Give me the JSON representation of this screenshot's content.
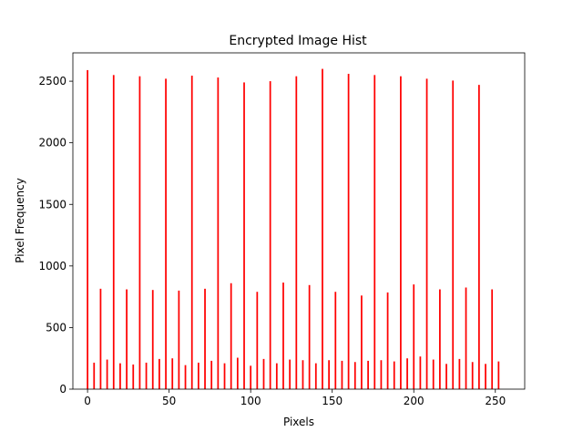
{
  "chart_data": {
    "type": "bar",
    "title": "Encrypted Image Hist",
    "xlabel": "Pixels",
    "ylabel": "Pixel Frequency",
    "xlim": [
      -9,
      268
    ],
    "ylim": [
      0,
      2730
    ],
    "xticks": [
      0,
      50,
      100,
      150,
      200,
      250
    ],
    "yticks": [
      0,
      500,
      1000,
      1500,
      2000,
      2500
    ],
    "grid": false,
    "legend": false,
    "bar_color": "#ff0000",
    "series": [
      {
        "x": [
          0,
          1,
          2,
          3,
          4,
          5,
          6,
          7,
          8,
          9,
          10,
          11,
          12,
          13,
          14,
          15,
          16,
          17,
          18,
          19,
          20,
          21,
          22,
          23,
          24,
          25,
          26,
          27,
          28,
          29,
          30,
          31,
          32,
          33,
          34,
          35,
          36,
          37,
          38,
          39,
          40,
          41,
          42,
          43,
          44,
          45,
          46,
          47,
          48,
          49,
          50,
          51,
          52,
          53,
          54,
          55,
          56,
          57,
          58,
          59,
          60,
          61,
          62,
          63,
          64,
          65,
          66,
          67,
          68,
          69,
          70,
          71,
          72,
          73,
          74,
          75,
          76,
          77,
          78,
          79,
          80,
          81,
          82,
          83,
          84,
          85,
          86,
          87,
          88,
          89,
          90,
          91,
          92,
          93,
          94,
          95,
          96,
          97,
          98,
          99,
          100,
          101,
          102,
          103,
          104,
          105,
          106,
          107,
          108,
          109,
          110,
          111,
          112,
          113,
          114,
          115,
          116,
          117,
          118,
          119,
          120,
          121,
          122,
          123,
          124,
          125,
          126,
          127,
          128,
          129,
          130,
          131,
          132,
          133,
          134,
          135,
          136,
          137,
          138,
          139,
          140,
          141,
          142,
          143,
          144,
          145,
          146,
          147,
          148,
          149,
          150,
          151,
          152,
          153,
          154,
          155,
          156,
          157,
          158,
          159,
          160,
          161,
          162,
          163,
          164,
          165,
          166,
          167,
          168,
          169,
          170,
          171,
          172,
          173,
          174,
          175,
          176,
          177,
          178,
          179,
          180,
          181,
          182,
          183,
          184,
          185,
          186,
          187,
          188,
          189,
          190,
          191,
          192,
          193,
          194,
          195,
          196,
          197,
          198,
          199,
          200,
          201,
          202,
          203,
          204,
          205,
          206,
          207,
          208,
          209,
          210,
          211,
          212,
          213,
          214,
          215,
          216,
          217,
          218,
          219,
          220,
          221,
          222,
          223,
          224,
          225,
          226,
          227,
          228,
          229,
          230,
          231,
          232,
          233,
          234,
          235,
          236,
          237,
          238,
          239,
          240,
          241,
          242,
          243,
          244,
          245,
          246,
          247,
          248,
          249,
          250,
          251,
          252,
          253,
          254,
          255
        ],
        "values": [
          2590,
          0,
          0,
          0,
          215,
          0,
          0,
          0,
          815,
          0,
          0,
          0,
          240,
          0,
          0,
          0,
          2550,
          0,
          0,
          0,
          210,
          0,
          0,
          0,
          810,
          0,
          0,
          0,
          200,
          0,
          0,
          0,
          2540,
          0,
          0,
          0,
          215,
          0,
          0,
          0,
          805,
          0,
          0,
          0,
          245,
          0,
          0,
          0,
          2520,
          0,
          0,
          0,
          250,
          0,
          0,
          0,
          800,
          0,
          0,
          0,
          195,
          0,
          0,
          0,
          2545,
          0,
          0,
          0,
          215,
          0,
          0,
          0,
          815,
          0,
          0,
          0,
          230,
          0,
          0,
          0,
          2530,
          0,
          0,
          0,
          210,
          0,
          0,
          0,
          860,
          0,
          0,
          0,
          255,
          0,
          0,
          0,
          2490,
          0,
          0,
          0,
          190,
          0,
          0,
          0,
          790,
          0,
          0,
          0,
          245,
          0,
          0,
          0,
          2500,
          0,
          0,
          0,
          210,
          0,
          0,
          0,
          865,
          0,
          0,
          0,
          240,
          0,
          0,
          0,
          2540,
          0,
          0,
          0,
          235,
          0,
          0,
          0,
          845,
          0,
          0,
          0,
          210,
          0,
          0,
          0,
          2600,
          0,
          0,
          0,
          235,
          0,
          0,
          0,
          790,
          0,
          0,
          0,
          230,
          0,
          0,
          0,
          2560,
          0,
          0,
          0,
          220,
          0,
          0,
          0,
          760,
          0,
          0,
          0,
          230,
          0,
          0,
          0,
          2550,
          0,
          0,
          0,
          235,
          0,
          0,
          0,
          785,
          0,
          0,
          0,
          225,
          0,
          0,
          0,
          2540,
          0,
          0,
          0,
          250,
          0,
          0,
          0,
          850,
          0,
          0,
          0,
          265,
          0,
          0,
          0,
          2520,
          0,
          0,
          0,
          240,
          0,
          0,
          0,
          810,
          0,
          0,
          0,
          205,
          0,
          0,
          0,
          2505,
          0,
          0,
          0,
          245,
          0,
          0,
          0,
          825,
          0,
          0,
          0,
          220,
          0,
          0,
          0,
          2470,
          0,
          0,
          0,
          205,
          0,
          0,
          0,
          810,
          0,
          0,
          0,
          225,
          0,
          0,
          0
        ]
      }
    ]
  }
}
